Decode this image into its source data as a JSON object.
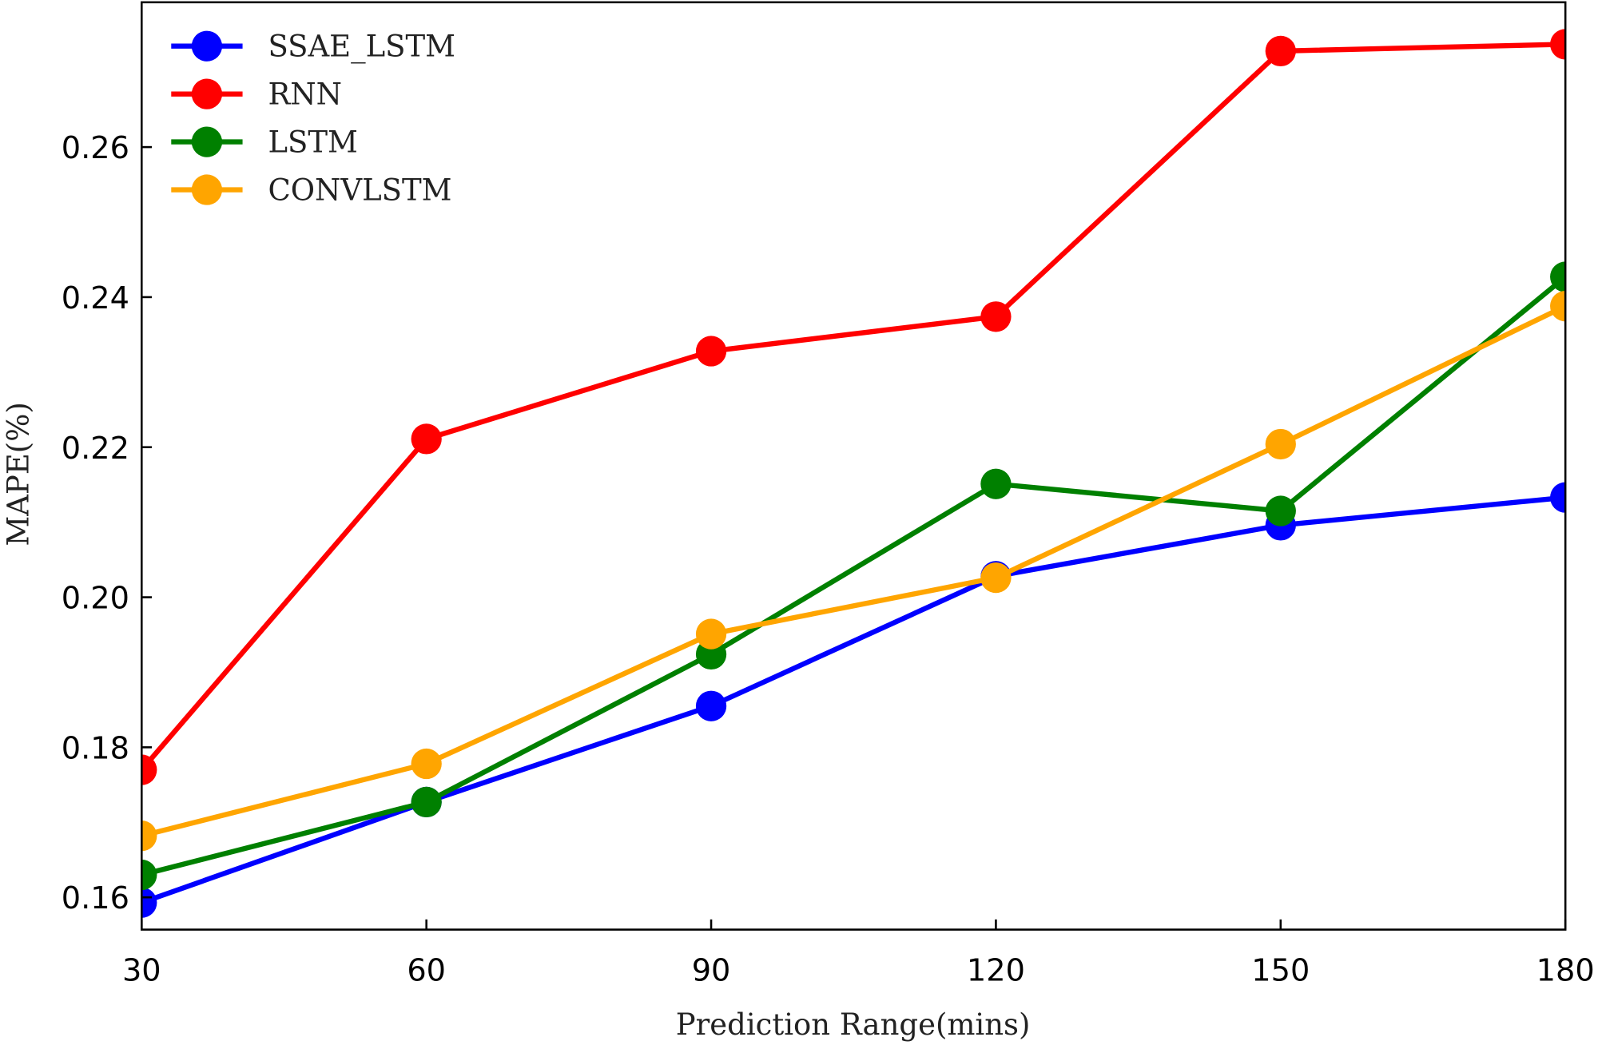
{
  "chart_data": {
    "type": "line",
    "title": "",
    "xlabel": "Prediction Range(mins)",
    "ylabel": "MAPE(%)",
    "x": [
      30,
      60,
      90,
      120,
      150,
      180
    ],
    "xticks": [
      "30",
      "60",
      "90",
      "120",
      "150",
      "180"
    ],
    "yticks": [
      "0.16",
      "0.18",
      "0.20",
      "0.22",
      "0.24",
      "0.26"
    ],
    "xlim": [
      30,
      180
    ],
    "ylim": [
      0.1557,
      0.2793
    ],
    "grid": false,
    "legend_position": "top-left",
    "series": [
      {
        "name": "SSAE_LSTM",
        "color": "#0000ff",
        "values": [
          0.1593,
          0.1727,
          0.1855,
          0.2028,
          0.2096,
          0.2133
        ]
      },
      {
        "name": "RNN",
        "color": "#ff0000",
        "values": [
          0.177,
          0.2211,
          0.2328,
          0.2374,
          0.2728,
          0.2737
        ]
      },
      {
        "name": "LSTM",
        "color": "#008000",
        "values": [
          0.163,
          0.1727,
          0.1924,
          0.2151,
          0.2115,
          0.2427
        ]
      },
      {
        "name": "CONVLSTM",
        "color": "#ffa500",
        "values": [
          0.1682,
          0.1778,
          0.1951,
          0.2026,
          0.2204,
          0.2388
        ]
      }
    ]
  }
}
